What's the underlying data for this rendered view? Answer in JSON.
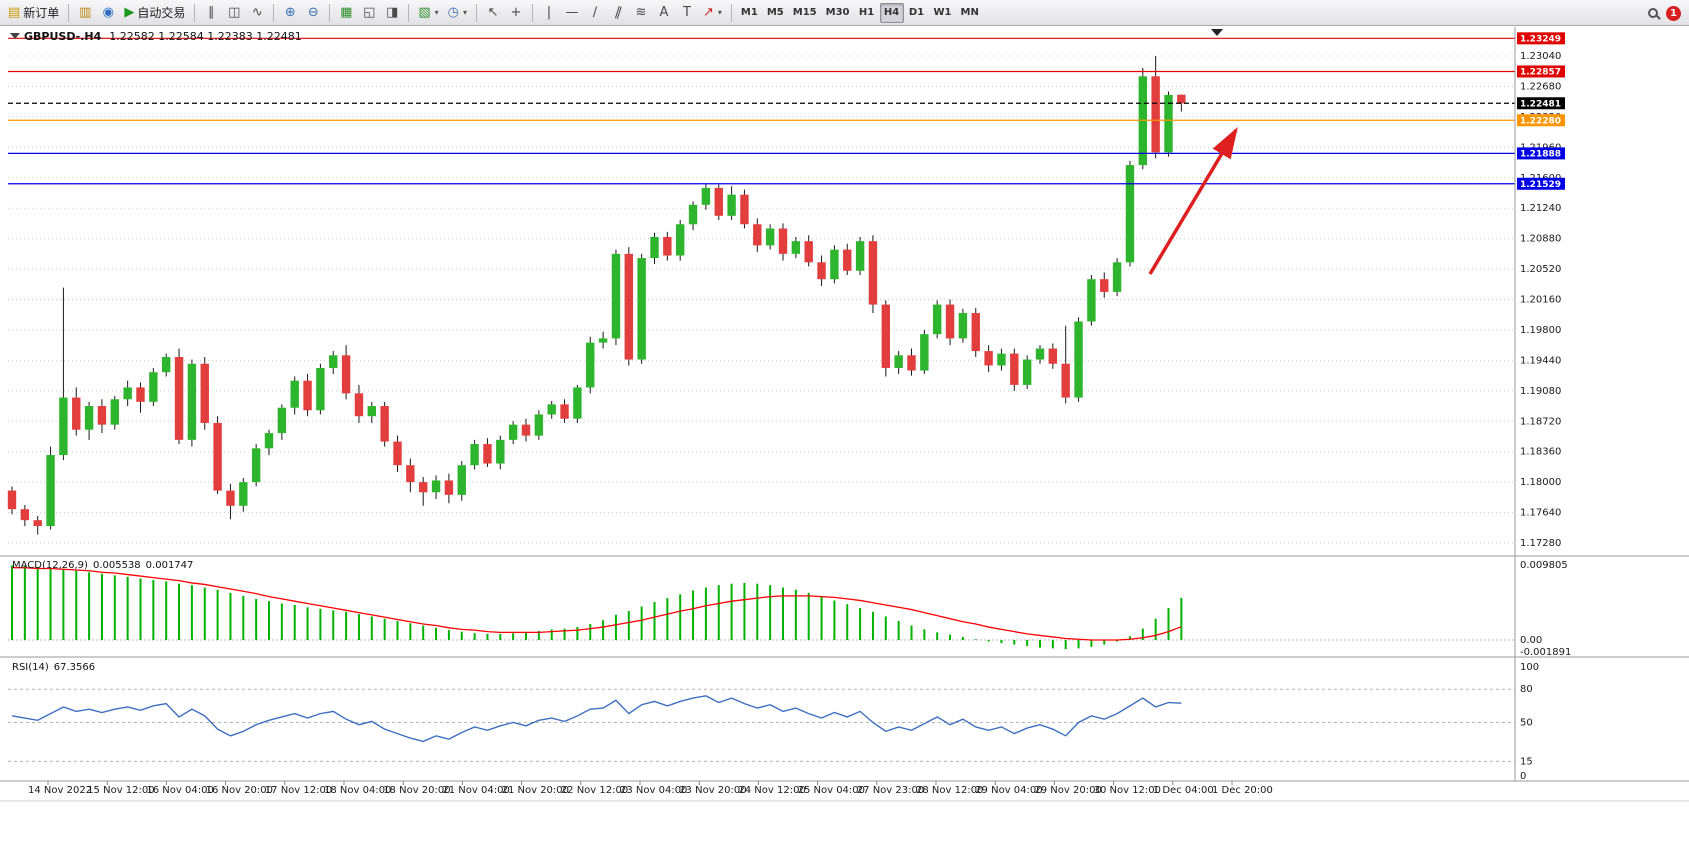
{
  "window": {
    "badge_count": "1"
  },
  "toolbar": {
    "new_order": "新订单",
    "autotrading": "自动交易",
    "timeframes": [
      "M1",
      "M5",
      "M15",
      "M30",
      "H1",
      "H4",
      "D1",
      "W1",
      "MN"
    ],
    "active_timeframe": "H4"
  },
  "icons": {
    "new_order": "▤",
    "market_watch": "▥",
    "navigator": "◉",
    "autotrading": "▶",
    "bars": "∥",
    "candles": "◫",
    "line_chart": "∿",
    "zoom_in": "⊕",
    "zoom_out": "⊖",
    "tile_windows": "▦",
    "cascade": "◱",
    "arrange_vertical": "◨",
    "new_chart": "▧",
    "period": "◷",
    "caret": "▾",
    "cursor": "↖",
    "crosshair": "+",
    "vline": "|",
    "hline": "—",
    "trendline": "∕",
    "channel": "∥",
    "fibonacci": "≋",
    "text": "A",
    "label": "T",
    "arrow_shape": "↗"
  },
  "chart": {
    "title": "GBPUSD-.H4",
    "ohlc": "1.22582 1.22584 1.22383 1.22481",
    "colors": {
      "bull": "#2db52d",
      "bear": "#e33e3e",
      "wick": "#1a1a1a",
      "macd_hist": "#00b300",
      "macd_signal": "#ff0000",
      "rsi": "#3d6fc0",
      "grid": "#c9c9c9",
      "arrow": "#dd1f1f",
      "level_red": "#e00000",
      "level_orange": "#ff9500",
      "level_blue": "#0000e8",
      "level_black": "#000000"
    }
  },
  "panels": {
    "macd": {
      "label": "MACD(12,26,9)",
      "value_main": "0.005538",
      "value_signal": "0.001747",
      "axis": [
        "0.009805",
        "0.00",
        "-0.001891"
      ]
    },
    "rsi": {
      "label": "RSI(14)",
      "value": "67.3566",
      "axis": [
        "100",
        "80",
        "50",
        "15",
        "0"
      ],
      "levels": [
        80,
        50,
        15
      ]
    }
  },
  "chart_data": {
    "type": "candlestick",
    "symbol": "GBPUSD",
    "period": "H4",
    "price_ticks": [
      "1.23040",
      "1.22680",
      "1.22320",
      "1.21960",
      "1.21600",
      "1.21240",
      "1.20880",
      "1.20520",
      "1.20160",
      "1.19800",
      "1.19440",
      "1.19080",
      "1.18720",
      "1.18360",
      "1.18000",
      "1.17640",
      "1.17280"
    ],
    "time_labels": [
      "14 Nov 2022",
      "15 Nov 12:00",
      "16 Nov 04:00",
      "16 Nov 20:00",
      "17 Nov 12:00",
      "18 Nov 04:00",
      "18 Nov 20:00",
      "21 Nov 04:00",
      "21 Nov 20:00",
      "22 Nov 12:00",
      "23 Nov 04:00",
      "23 Nov 20:00",
      "24 Nov 12:00",
      "25 Nov 04:00",
      "27 Nov 23:00",
      "28 Nov 12:00",
      "29 Nov 04:00",
      "29 Nov 20:00",
      "30 Nov 12:00",
      "1 Dec 04:00",
      "1 Dec 20:00"
    ],
    "levels": [
      {
        "name": "resistance-1",
        "price": 1.23249,
        "label": "1.23249",
        "color": "#e00000",
        "style": "solid"
      },
      {
        "name": "resistance-2",
        "price": 1.22857,
        "label": "1.22857",
        "color": "#e00000",
        "style": "solid"
      },
      {
        "name": "current-price",
        "price": 1.22481,
        "label": "1.22481",
        "color": "#000000",
        "style": "dashed"
      },
      {
        "name": "pivot-line",
        "price": 1.2228,
        "label": "1.22280",
        "color": "#ff9500",
        "style": "solid"
      },
      {
        "name": "support-1",
        "price": 1.21888,
        "label": "1.21888",
        "color": "#0000e8",
        "style": "solid"
      },
      {
        "name": "support-2",
        "price": 1.21529,
        "label": "1.21529",
        "color": "#0000e8",
        "style": "solid"
      }
    ],
    "candles": [
      [
        1.179,
        1.1795,
        1.1762,
        1.1768
      ],
      [
        1.1768,
        1.1773,
        1.1748,
        1.1755
      ],
      [
        1.1755,
        1.176,
        1.1738,
        1.1748
      ],
      [
        1.1748,
        1.1842,
        1.1744,
        1.1832
      ],
      [
        1.1832,
        1.203,
        1.1826,
        1.19
      ],
      [
        1.19,
        1.1912,
        1.1855,
        1.1862
      ],
      [
        1.1862,
        1.1895,
        1.185,
        1.189
      ],
      [
        1.189,
        1.1898,
        1.1858,
        1.1868
      ],
      [
        1.1868,
        1.1902,
        1.1862,
        1.1898
      ],
      [
        1.1898,
        1.192,
        1.189,
        1.1912
      ],
      [
        1.1912,
        1.1918,
        1.1882,
        1.1895
      ],
      [
        1.1895,
        1.1935,
        1.189,
        1.193
      ],
      [
        1.193,
        1.1952,
        1.1925,
        1.1948
      ],
      [
        1.1948,
        1.1958,
        1.1845,
        1.185
      ],
      [
        1.185,
        1.1945,
        1.1842,
        1.194
      ],
      [
        1.194,
        1.1948,
        1.1862,
        1.187
      ],
      [
        1.187,
        1.1878,
        1.1786,
        1.179
      ],
      [
        1.179,
        1.1798,
        1.1756,
        1.1772
      ],
      [
        1.1772,
        1.1805,
        1.1765,
        1.18
      ],
      [
        1.18,
        1.1845,
        1.1795,
        1.184
      ],
      [
        1.184,
        1.1862,
        1.1832,
        1.1858
      ],
      [
        1.1858,
        1.1892,
        1.185,
        1.1888
      ],
      [
        1.1888,
        1.1925,
        1.188,
        1.192
      ],
      [
        1.192,
        1.1928,
        1.1878,
        1.1885
      ],
      [
        1.1885,
        1.194,
        1.188,
        1.1935
      ],
      [
        1.1935,
        1.1955,
        1.1928,
        1.195
      ],
      [
        1.195,
        1.1962,
        1.1898,
        1.1905
      ],
      [
        1.1905,
        1.1915,
        1.187,
        1.1878
      ],
      [
        1.1878,
        1.1895,
        1.187,
        1.189
      ],
      [
        1.189,
        1.1895,
        1.1842,
        1.1848
      ],
      [
        1.1848,
        1.1855,
        1.1812,
        1.182
      ],
      [
        1.182,
        1.1828,
        1.1788,
        1.18
      ],
      [
        1.18,
        1.1806,
        1.1772,
        1.1788
      ],
      [
        1.1788,
        1.1808,
        1.178,
        1.1802
      ],
      [
        1.1802,
        1.181,
        1.1775,
        1.1785
      ],
      [
        1.1785,
        1.1825,
        1.1778,
        1.182
      ],
      [
        1.182,
        1.185,
        1.1815,
        1.1845
      ],
      [
        1.1845,
        1.1852,
        1.1818,
        1.1822
      ],
      [
        1.1822,
        1.1855,
        1.1815,
        1.185
      ],
      [
        1.185,
        1.1872,
        1.1845,
        1.1868
      ],
      [
        1.1868,
        1.1875,
        1.1848,
        1.1855
      ],
      [
        1.1855,
        1.1885,
        1.185,
        1.188
      ],
      [
        1.188,
        1.1896,
        1.1875,
        1.1892
      ],
      [
        1.1892,
        1.1898,
        1.187,
        1.1875
      ],
      [
        1.1875,
        1.1915,
        1.187,
        1.1912
      ],
      [
        1.1912,
        1.1972,
        1.1905,
        1.1965
      ],
      [
        1.1965,
        1.1978,
        1.1958,
        1.197
      ],
      [
        1.197,
        1.2075,
        1.1962,
        1.207
      ],
      [
        1.207,
        1.2078,
        1.1938,
        1.1945
      ],
      [
        1.1945,
        1.207,
        1.194,
        1.2065
      ],
      [
        1.2065,
        1.2095,
        1.2058,
        1.209
      ],
      [
        1.209,
        1.2096,
        1.2062,
        1.2068
      ],
      [
        1.2068,
        1.211,
        1.2062,
        1.2105
      ],
      [
        1.2105,
        1.2132,
        1.2098,
        1.2128
      ],
      [
        1.2128,
        1.2153,
        1.2122,
        1.2148
      ],
      [
        1.2148,
        1.2152,
        1.211,
        1.2115
      ],
      [
        1.2115,
        1.215,
        1.211,
        1.214
      ],
      [
        1.214,
        1.2146,
        1.21,
        1.2105
      ],
      [
        1.2105,
        1.2112,
        1.2072,
        1.208
      ],
      [
        1.208,
        1.2105,
        1.2075,
        1.21
      ],
      [
        1.21,
        1.2106,
        1.2062,
        1.207
      ],
      [
        1.207,
        1.209,
        1.2065,
        1.2085
      ],
      [
        1.2085,
        1.2092,
        1.2055,
        1.206
      ],
      [
        1.206,
        1.2068,
        1.2032,
        1.204
      ],
      [
        1.204,
        1.208,
        1.2035,
        1.2075
      ],
      [
        1.2075,
        1.2082,
        1.2045,
        1.205
      ],
      [
        1.205,
        1.209,
        1.2045,
        1.2085
      ],
      [
        1.2085,
        1.2092,
        1.2,
        1.201
      ],
      [
        1.201,
        1.2015,
        1.1925,
        1.1935
      ],
      [
        1.1935,
        1.1955,
        1.1928,
        1.195
      ],
      [
        1.195,
        1.1958,
        1.1926,
        1.1932
      ],
      [
        1.1932,
        1.198,
        1.1928,
        1.1975
      ],
      [
        1.1975,
        1.2015,
        1.197,
        1.201
      ],
      [
        1.201,
        1.2016,
        1.1962,
        1.197
      ],
      [
        1.197,
        1.2005,
        1.1965,
        1.2
      ],
      [
        1.2,
        1.2006,
        1.1948,
        1.1955
      ],
      [
        1.1955,
        1.1962,
        1.193,
        1.1938
      ],
      [
        1.1938,
        1.1958,
        1.1932,
        1.1952
      ],
      [
        1.1952,
        1.1958,
        1.1908,
        1.1915
      ],
      [
        1.1915,
        1.195,
        1.191,
        1.1945
      ],
      [
        1.1945,
        1.1962,
        1.194,
        1.1958
      ],
      [
        1.1958,
        1.1964,
        1.1934,
        1.194
      ],
      [
        1.194,
        1.1985,
        1.1893,
        1.19
      ],
      [
        1.19,
        1.1995,
        1.1895,
        1.199
      ],
      [
        1.199,
        1.2045,
        1.1985,
        1.204
      ],
      [
        1.204,
        1.2048,
        1.2018,
        1.2025
      ],
      [
        1.2025,
        1.2065,
        1.202,
        1.206
      ],
      [
        1.206,
        1.218,
        1.2055,
        1.2175
      ],
      [
        1.2175,
        1.229,
        1.217,
        1.228
      ],
      [
        1.228,
        1.2304,
        1.2183,
        1.219
      ],
      [
        1.219,
        1.2262,
        1.2185,
        1.2258
      ],
      [
        1.22582,
        1.22584,
        1.22383,
        1.22481
      ]
    ],
    "macd_histogram": [
      0.0098,
      0.0097,
      0.0096,
      0.0094,
      0.0093,
      0.0091,
      0.0089,
      0.0087,
      0.0085,
      0.0083,
      0.0081,
      0.0079,
      0.0077,
      0.0074,
      0.0072,
      0.0069,
      0.0066,
      0.0062,
      0.0058,
      0.0054,
      0.0051,
      0.0048,
      0.0046,
      0.0043,
      0.0041,
      0.0039,
      0.0037,
      0.0034,
      0.0031,
      0.0028,
      0.0025,
      0.0022,
      0.0019,
      0.0016,
      0.0013,
      0.0011,
      0.0009,
      0.0008,
      0.0008,
      0.0009,
      0.001,
      0.0012,
      0.0014,
      0.0015,
      0.0017,
      0.0021,
      0.0026,
      0.0033,
      0.0038,
      0.0044,
      0.005,
      0.0055,
      0.006,
      0.0065,
      0.0069,
      0.0072,
      0.0074,
      0.0075,
      0.0074,
      0.0072,
      0.0069,
      0.0066,
      0.0062,
      0.0057,
      0.0052,
      0.0047,
      0.0042,
      0.0037,
      0.0031,
      0.0025,
      0.0019,
      0.0014,
      0.001,
      0.0007,
      0.0004,
      0.0001,
      -0.0002,
      -0.0004,
      -0.0006,
      -0.0008,
      -0.001,
      -0.0011,
      -0.0012,
      -0.0011,
      -0.0009,
      -0.0006,
      -0.0002,
      0.0005,
      0.0015,
      0.0028,
      0.0042,
      0.005538
    ],
    "macd_signal": [
      0.0095,
      0.0095,
      0.0094,
      0.0094,
      0.0093,
      0.0092,
      0.0091,
      0.0089,
      0.0088,
      0.0086,
      0.0084,
      0.0082,
      0.008,
      0.0078,
      0.0075,
      0.0073,
      0.007,
      0.0067,
      0.0064,
      0.0061,
      0.0057,
      0.0054,
      0.0051,
      0.0048,
      0.0045,
      0.0042,
      0.0039,
      0.0036,
      0.0033,
      0.003,
      0.0027,
      0.0024,
      0.0021,
      0.0019,
      0.0016,
      0.0014,
      0.0013,
      0.0011,
      0.001,
      0.001,
      0.001,
      0.001,
      0.0011,
      0.0012,
      0.0013,
      0.0015,
      0.0017,
      0.002,
      0.0023,
      0.0026,
      0.003,
      0.0034,
      0.0038,
      0.0041,
      0.0045,
      0.0048,
      0.0051,
      0.0053,
      0.0055,
      0.0057,
      0.0058,
      0.0058,
      0.0058,
      0.0057,
      0.0056,
      0.0054,
      0.0052,
      0.0049,
      0.0046,
      0.0043,
      0.004,
      0.0036,
      0.0032,
      0.0028,
      0.0024,
      0.0021,
      0.0017,
      0.0014,
      0.0011,
      0.0008,
      0.0006,
      0.0004,
      0.0002,
      0.0001,
      0.0,
      0.0,
      0.0,
      0.0001,
      0.0003,
      0.0006,
      0.0011,
      0.001747
    ],
    "rsi": [
      56,
      54,
      52,
      58,
      64,
      60,
      62,
      59,
      62,
      64,
      61,
      65,
      67,
      55,
      62,
      56,
      44,
      38,
      42,
      48,
      52,
      55,
      58,
      54,
      58,
      60,
      53,
      48,
      51,
      44,
      40,
      36,
      33,
      38,
      35,
      41,
      46,
      43,
      47,
      50,
      47,
      52,
      54,
      51,
      56,
      62,
      63,
      70,
      58,
      66,
      69,
      65,
      69,
      72,
      74,
      68,
      72,
      67,
      63,
      66,
      60,
      63,
      58,
      54,
      59,
      55,
      60,
      50,
      42,
      46,
      43,
      49,
      55,
      48,
      53,
      46,
      43,
      46,
      40,
      45,
      48,
      44,
      38,
      50,
      56,
      53,
      58,
      65,
      72,
      64,
      68,
      67.36
    ]
  }
}
